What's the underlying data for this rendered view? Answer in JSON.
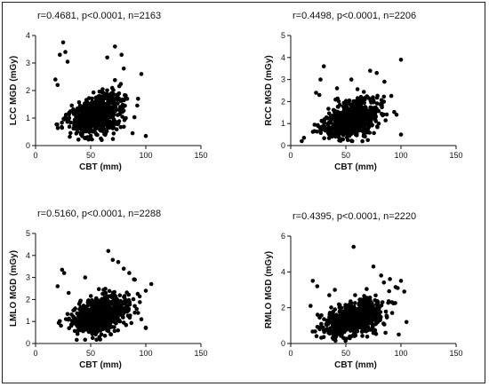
{
  "chart_data": [
    {
      "id": "lcc",
      "type": "scatter",
      "title": "",
      "annotation": "r=0.4681, p<0.0001, n=2163",
      "xlabel": "CBT (mm)",
      "ylabel": "LCC MGD (mGy)",
      "xlim": [
        0,
        150
      ],
      "ylim": [
        0,
        4
      ],
      "xticks": [
        "0",
        "50",
        "100",
        "150"
      ],
      "yticks": [
        "0",
        "1",
        "2",
        "3",
        "4"
      ],
      "r": 0.4681,
      "n": 2163,
      "cloud": {
        "x_center": 55,
        "x_sd": 12,
        "x_min": 18,
        "x_max": 103,
        "y_intercept": 0.45,
        "slope": 0.012,
        "y_sd": 0.32
      },
      "outliers": [
        [
          25,
          3.75
        ],
        [
          27,
          3.4
        ],
        [
          22,
          3.3
        ],
        [
          29,
          3.05
        ],
        [
          18,
          2.4
        ],
        [
          20,
          2.2
        ],
        [
          72,
          3.6
        ],
        [
          78,
          3.3
        ],
        [
          80,
          2.8
        ],
        [
          96,
          2.6
        ],
        [
          100,
          0.35
        ],
        [
          88,
          0.45
        ],
        [
          60,
          0.2
        ],
        [
          93,
          1.7
        ],
        [
          65,
          3.2
        ]
      ]
    },
    {
      "id": "rcc",
      "type": "scatter",
      "title": "",
      "annotation": "r=0.4498, p<0.0001, n=2206",
      "xlabel": "CBT (mm)",
      "ylabel": "RCC MGD (mGy)",
      "xlim": [
        0,
        150
      ],
      "ylim": [
        0,
        5
      ],
      "xticks": [
        "0",
        "50",
        "100",
        "150"
      ],
      "yticks": [
        "0",
        "1",
        "2",
        "3",
        "4",
        "5"
      ],
      "r": 0.4498,
      "n": 2206,
      "cloud": {
        "x_center": 55,
        "x_sd": 12,
        "x_min": 14,
        "x_max": 103,
        "y_intercept": 0.5,
        "slope": 0.013,
        "y_sd": 0.36
      },
      "outliers": [
        [
          30,
          3.6
        ],
        [
          27,
          3.0
        ],
        [
          23,
          2.4
        ],
        [
          26,
          2.3
        ],
        [
          10,
          0.2
        ],
        [
          12,
          0.35
        ],
        [
          72,
          3.4
        ],
        [
          78,
          3.3
        ],
        [
          85,
          2.9
        ],
        [
          100,
          3.9
        ],
        [
          96,
          1.4
        ],
        [
          42,
          2.6
        ],
        [
          55,
          3.0
        ],
        [
          100,
          0.5
        ]
      ]
    },
    {
      "id": "lmlo",
      "type": "scatter",
      "title": "",
      "annotation": "r=0.5160, p<0.0001, n=2288",
      "xlabel": "CBT (mm)",
      "ylabel": "LMLO MGD (mGy)",
      "xlim": [
        0,
        150
      ],
      "ylim": [
        0,
        5
      ],
      "xticks": [
        "0",
        "50",
        "100",
        "150"
      ],
      "yticks": [
        "0",
        "1",
        "2",
        "3",
        "4",
        "5"
      ],
      "r": 0.516,
      "n": 2288,
      "cloud": {
        "x_center": 58,
        "x_sd": 13,
        "x_min": 18,
        "x_max": 103,
        "y_intercept": 0.45,
        "slope": 0.015,
        "y_sd": 0.36
      },
      "outliers": [
        [
          24,
          3.35
        ],
        [
          26,
          3.2
        ],
        [
          20,
          2.6
        ],
        [
          66,
          4.2
        ],
        [
          70,
          3.8
        ],
        [
          75,
          3.7
        ],
        [
          80,
          3.4
        ],
        [
          85,
          3.2
        ],
        [
          90,
          2.9
        ],
        [
          100,
          2.4
        ],
        [
          105,
          2.7
        ],
        [
          96,
          1.1
        ],
        [
          100,
          0.7
        ],
        [
          45,
          3.0
        ],
        [
          30,
          2.3
        ]
      ]
    },
    {
      "id": "rmlo",
      "type": "scatter",
      "title": "",
      "annotation": "r=0.4395, p<0.0001, n=2220",
      "xlabel": "CBT (mm)",
      "ylabel": "RMLO MGD (mGy)",
      "xlim": [
        0,
        150
      ],
      "ylim": [
        0,
        6
      ],
      "xticks": [
        "0",
        "50",
        "100",
        "150"
      ],
      "yticks": [
        "0",
        "2",
        "4",
        "6"
      ],
      "r": 0.4395,
      "n": 2220,
      "cloud": {
        "x_center": 57,
        "x_sd": 13,
        "x_min": 16,
        "x_max": 105,
        "y_intercept": 0.45,
        "slope": 0.017,
        "y_sd": 0.42
      },
      "outliers": [
        [
          20,
          3.5
        ],
        [
          24,
          3.2
        ],
        [
          18,
          2.1
        ],
        [
          57,
          5.4
        ],
        [
          75,
          4.3
        ],
        [
          82,
          3.8
        ],
        [
          90,
          3.6
        ],
        [
          100,
          3.5
        ],
        [
          97,
          3.1
        ],
        [
          103,
          2.9
        ],
        [
          40,
          3.0
        ],
        [
          35,
          2.7
        ],
        [
          105,
          1.2
        ],
        [
          98,
          0.5
        ],
        [
          86,
          0.6
        ]
      ]
    }
  ]
}
